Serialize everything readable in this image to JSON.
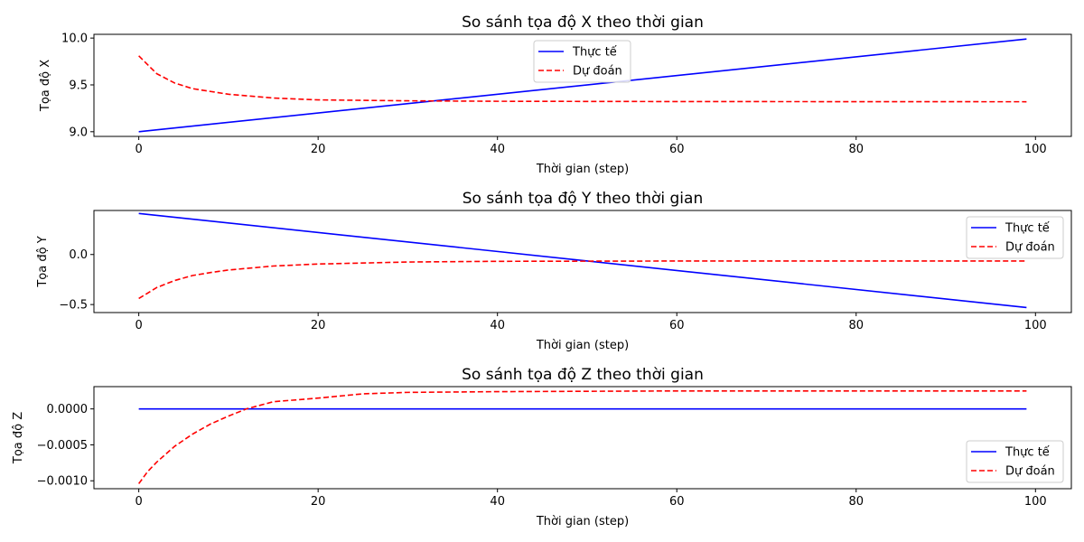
{
  "chart_data": [
    {
      "type": "line",
      "title": "So sánh tọa độ X theo thời gian",
      "xlabel": "Thời gian (step)",
      "ylabel": "Tọa độ X",
      "xlim": [
        -5,
        104
      ],
      "ylim": [
        8.95,
        10.04
      ],
      "xticks": [
        0,
        20,
        40,
        60,
        80,
        100
      ],
      "yticks": [
        9.0,
        9.5,
        10.0
      ],
      "ytick_labels": [
        "9.0",
        "9.5",
        "10.0"
      ],
      "legend_position": "upper center",
      "series": [
        {
          "name": "Thực tế",
          "color": "#0000ff",
          "dash": "solid",
          "x": [
            0,
            99
          ],
          "y": [
            9.0,
            9.99
          ]
        },
        {
          "name": "Dự đoán",
          "color": "#ff0000",
          "dash": "dashed",
          "x": [
            0,
            2,
            4,
            6,
            8,
            10,
            15,
            20,
            30,
            40,
            60,
            80,
            99
          ],
          "y": [
            9.81,
            9.62,
            9.52,
            9.46,
            9.43,
            9.4,
            9.36,
            9.34,
            9.33,
            9.325,
            9.322,
            9.321,
            9.32
          ]
        }
      ]
    },
    {
      "type": "line",
      "title": "So sánh tọa độ Y theo thời gian",
      "xlabel": "Thời gian (step)",
      "ylabel": "Tọa độ Y",
      "xlim": [
        -5,
        104
      ],
      "ylim": [
        -0.58,
        0.44
      ],
      "xticks": [
        0,
        20,
        40,
        60,
        80,
        100
      ],
      "yticks": [
        -0.5,
        0.0
      ],
      "ytick_labels": [
        "−0.5",
        "0.0"
      ],
      "legend_position": "upper right",
      "series": [
        {
          "name": "Thực tế",
          "color": "#0000ff",
          "dash": "solid",
          "x": [
            0,
            99
          ],
          "y": [
            0.41,
            -0.53
          ]
        },
        {
          "name": "Dự đoán",
          "color": "#ff0000",
          "dash": "dashed",
          "x": [
            0,
            2,
            4,
            6,
            8,
            10,
            15,
            20,
            30,
            40,
            60,
            80,
            99
          ],
          "y": [
            -0.44,
            -0.33,
            -0.26,
            -0.21,
            -0.18,
            -0.155,
            -0.115,
            -0.095,
            -0.075,
            -0.068,
            -0.065,
            -0.065,
            -0.065
          ]
        }
      ]
    },
    {
      "type": "line",
      "title": "So sánh tọa độ Z theo thời gian",
      "xlabel": "Thời gian (step)",
      "ylabel": "Tọa độ Z",
      "xlim": [
        -5,
        104
      ],
      "ylim": [
        -0.00111,
        0.00031
      ],
      "xticks": [
        0,
        20,
        40,
        60,
        80,
        100
      ],
      "yticks": [
        0.0,
        -0.0005,
        -0.001
      ],
      "ytick_labels": [
        "0.0000",
        "−0.0005",
        "−0.0010"
      ],
      "legend_position": "lower right",
      "series": [
        {
          "name": "Thực tế",
          "color": "#0000ff",
          "dash": "solid",
          "x": [
            0,
            99
          ],
          "y": [
            0.0,
            0.0
          ]
        },
        {
          "name": "Dự đoán",
          "color": "#ff0000",
          "dash": "dashed",
          "x": [
            0,
            1,
            2,
            4,
            6,
            8,
            10,
            12,
            15,
            20,
            25,
            30,
            40,
            60,
            80,
            99
          ],
          "y": [
            -0.00104,
            -0.00087,
            -0.00074,
            -0.00052,
            -0.00035,
            -0.00021,
            -0.0001,
            0.0,
            0.0001,
            0.00015,
            0.00021,
            0.00023,
            0.00024,
            0.00025,
            0.00025,
            0.00025
          ]
        }
      ]
    }
  ]
}
